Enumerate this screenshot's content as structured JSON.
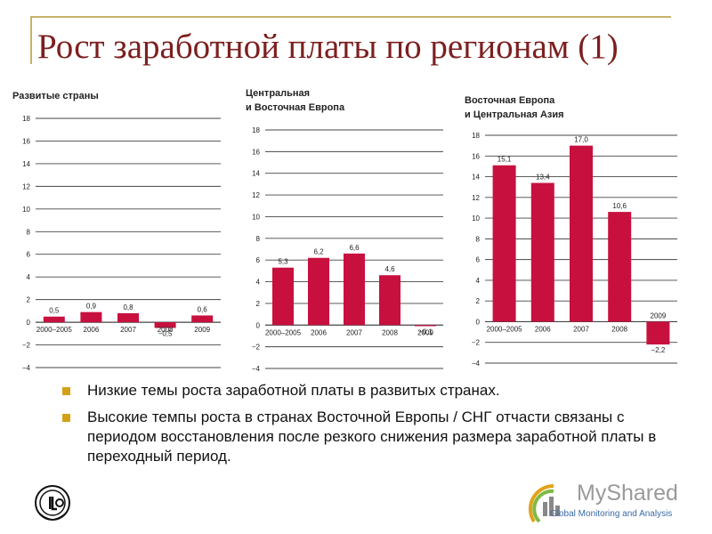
{
  "slide": {
    "title": "Рост заработной платы по регионам (1)"
  },
  "chart_data": [
    {
      "type": "bar",
      "title": "Развитые страны",
      "categories": [
        "2000–2005",
        "2006",
        "2007",
        "2008",
        "2009"
      ],
      "values": [
        0.5,
        0.9,
        0.8,
        -0.5,
        0.6
      ],
      "value_labels": [
        "0,5",
        "0,9",
        "0,8",
        "−0,5",
        "0,6"
      ],
      "ylim": [
        -4,
        18
      ],
      "yticks": [
        "−4",
        "−2",
        "0",
        "2",
        "4",
        "6",
        "8",
        "10",
        "12",
        "14",
        "16",
        "18"
      ],
      "grid": true
    },
    {
      "type": "bar",
      "title": "Центральная и Восточная Европа",
      "title_lines": [
        "Центральная",
        "и Восточная Европа"
      ],
      "categories": [
        "2000–2005",
        "2006",
        "2007",
        "2008",
        "2009"
      ],
      "values": [
        5.3,
        6.2,
        6.6,
        4.6,
        -0.1
      ],
      "value_labels": [
        "5,3",
        "6,2",
        "6,6",
        "4,6",
        "−0,1"
      ],
      "ylim": [
        -4,
        18
      ],
      "yticks": [
        "−4",
        "−2",
        "0",
        "2",
        "4",
        "6",
        "8",
        "10",
        "12",
        "14",
        "16",
        "18"
      ],
      "grid": true
    },
    {
      "type": "bar",
      "title": "Восточная Европа и Центральная Азия",
      "title_lines": [
        "Восточная Европа",
        "и Центральная Азия"
      ],
      "categories": [
        "2000–2005",
        "2006",
        "2007",
        "2008",
        "2009"
      ],
      "values": [
        15.1,
        13.4,
        17.0,
        10.6,
        -2.2
      ],
      "value_labels": [
        "15,1",
        "13,4",
        "17,0",
        "10,6",
        "−2,2"
      ],
      "ylim": [
        -4,
        18
      ],
      "yticks": [
        "−4",
        "−2",
        "0",
        "2",
        "4",
        "6",
        "8",
        "10",
        "12",
        "14",
        "16",
        "18"
      ],
      "grid": true
    }
  ],
  "colors": {
    "bar": "#c8103e",
    "title": "#7d1f1f",
    "bullet": "#d4a017",
    "frame": "#c9b26a"
  },
  "bullets": [
    "Низкие темы роста заработной платы в развитых странах.",
    "Высокие темпы роста в странах Восточной Европы / СНГ отчасти связаны с периодом восстановления после резкого снижения размера заработной платы в переходный период."
  ],
  "watermark": {
    "brand": "MyShared",
    "sub": "Global Monitoring and Analysis"
  },
  "logo": {
    "icon": "ilo-emblem-icon"
  }
}
